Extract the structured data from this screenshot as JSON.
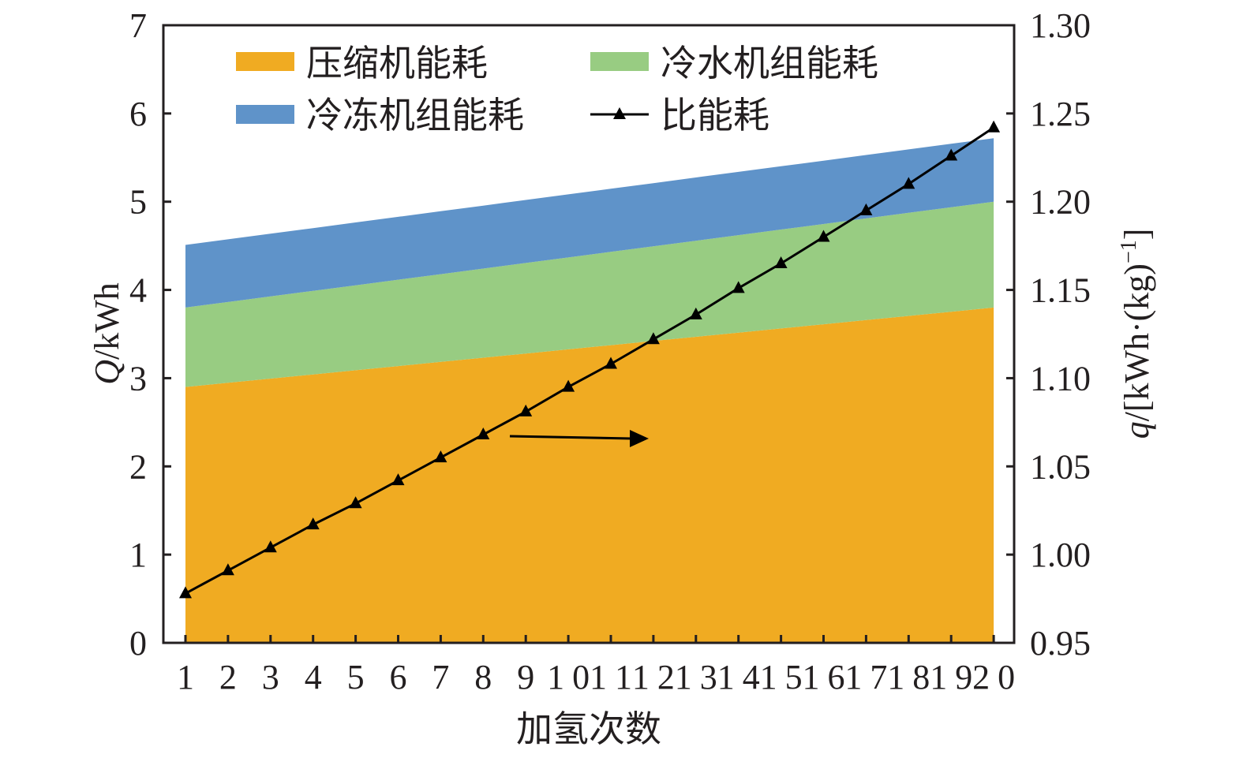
{
  "chart_data": {
    "type": "area",
    "xlabel": "加氢次数",
    "ylabel_left": {
      "symbol": "Q",
      "unit": "/kWh"
    },
    "ylabel_right": {
      "symbol": "q",
      "unit": "/[kWh·(kg)",
      "exponent": "−1",
      "close": "]"
    },
    "x": [
      1,
      2,
      3,
      4,
      5,
      6,
      7,
      8,
      9,
      10,
      11,
      12,
      13,
      14,
      15,
      16,
      17,
      18,
      19,
      20
    ],
    "ylim_left": [
      0,
      7
    ],
    "yticks_left": [
      "0",
      "1",
      "2",
      "3",
      "4",
      "5",
      "6",
      "7"
    ],
    "ylim_right": [
      0.95,
      1.3
    ],
    "yticks_right": [
      "0.95",
      "1.00",
      "1.05",
      "1.10",
      "1.15",
      "1.20",
      "1.25",
      "1.30"
    ],
    "grid": false,
    "legend_position": "top",
    "series": [
      {
        "name": "压缩机能耗",
        "kind": "stacked-area",
        "axis": "left",
        "color": "#f0ab22",
        "start": 2.9,
        "end": 3.8
      },
      {
        "name": "冷水机组能耗",
        "kind": "stacked-area",
        "axis": "left",
        "color": "#98cc82",
        "start": 0.9,
        "end": 1.2
      },
      {
        "name": "冷冻机组能耗",
        "kind": "stacked-area",
        "axis": "left",
        "color": "#5f93c9",
        "start": 0.71,
        "end": 0.72
      },
      {
        "name": "比能耗",
        "kind": "line",
        "axis": "right",
        "marker": "triangle",
        "color": "#000000",
        "values": [
          0.978,
          0.991,
          1.004,
          1.017,
          1.029,
          1.042,
          1.055,
          1.068,
          1.081,
          1.095,
          1.108,
          1.122,
          1.136,
          1.151,
          1.165,
          1.18,
          1.195,
          1.21,
          1.226,
          1.242
        ]
      }
    ],
    "annotations": [
      {
        "kind": "arrow",
        "direction": "right",
        "meaning": "line uses right axis"
      }
    ]
  }
}
